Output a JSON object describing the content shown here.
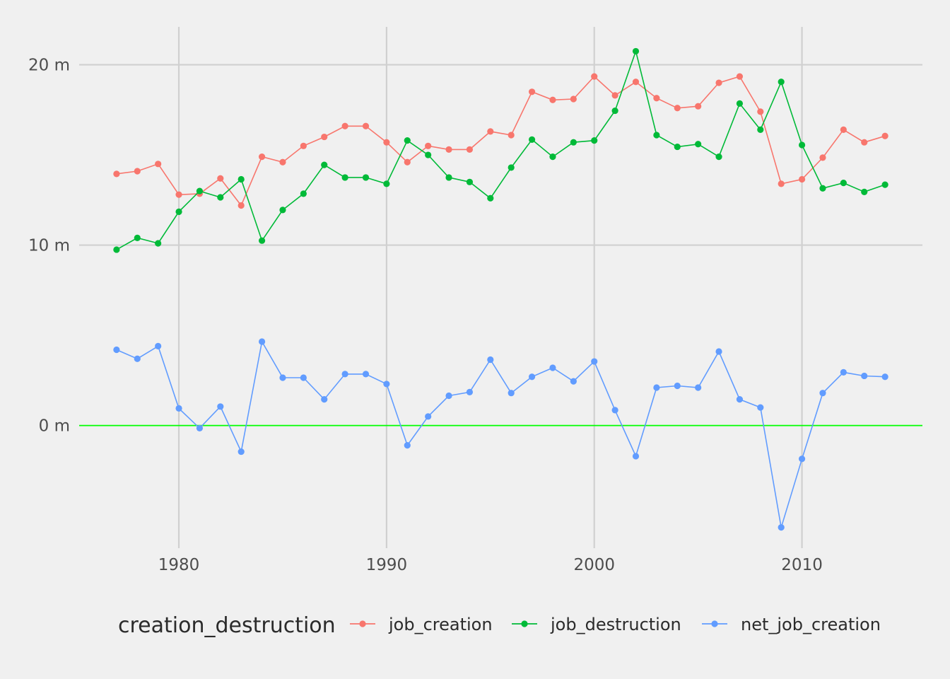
{
  "chart_data": {
    "type": "line",
    "x": [
      1977,
      1978,
      1979,
      1980,
      1981,
      1982,
      1983,
      1984,
      1985,
      1986,
      1987,
      1988,
      1989,
      1990,
      1991,
      1992,
      1993,
      1994,
      1995,
      1996,
      1997,
      1998,
      1999,
      2000,
      2001,
      2002,
      2003,
      2004,
      2005,
      2006,
      2007,
      2008,
      2009,
      2010,
      2011,
      2012,
      2013,
      2014
    ],
    "series": [
      {
        "name": "job_creation",
        "color": "#f8766d",
        "values": [
          13.95,
          14.1,
          14.5,
          12.8,
          12.85,
          13.7,
          12.2,
          14.9,
          14.6,
          15.5,
          16.0,
          16.6,
          16.6,
          15.7,
          14.6,
          15.5,
          15.3,
          15.3,
          16.3,
          16.1,
          18.5,
          18.05,
          18.1,
          19.35,
          18.3,
          19.05,
          18.15,
          17.6,
          17.7,
          19.0,
          19.35,
          17.4,
          13.4,
          13.65,
          14.85,
          16.4,
          15.7,
          16.05
        ]
      },
      {
        "name": "job_destruction",
        "color": "#00ba38",
        "values": [
          9.75,
          10.4,
          10.1,
          11.85,
          13.0,
          12.65,
          13.65,
          10.25,
          11.95,
          12.85,
          14.45,
          13.75,
          13.75,
          13.4,
          15.8,
          15.0,
          13.75,
          13.5,
          12.6,
          14.3,
          15.85,
          14.9,
          15.7,
          15.8,
          17.45,
          20.75,
          16.1,
          15.45,
          15.6,
          14.9,
          17.85,
          16.4,
          19.05,
          15.55,
          13.15,
          13.45,
          12.95,
          13.35
        ]
      },
      {
        "name": "net_job_creation",
        "color": "#619cff",
        "values": [
          4.2,
          3.7,
          4.4,
          0.95,
          -0.15,
          1.05,
          -1.45,
          4.65,
          2.65,
          2.65,
          1.45,
          2.85,
          2.85,
          2.3,
          -1.1,
          0.5,
          1.65,
          1.85,
          3.65,
          1.8,
          2.7,
          3.2,
          2.45,
          3.55,
          0.85,
          -1.7,
          2.1,
          2.2,
          2.1,
          4.1,
          1.45,
          1.0,
          -5.65,
          -1.85,
          1.8,
          2.95,
          2.75,
          2.7
        ]
      }
    ],
    "xticks": [
      1980,
      1990,
      2000,
      2010
    ],
    "xtick_labels": [
      "1980",
      "1990",
      "2000",
      "2010"
    ],
    "yticks": [
      0,
      10,
      20
    ],
    "ytick_labels": [
      "0 m",
      "10 m",
      "20 m"
    ],
    "xlim": [
      1975.2,
      2015.8
    ],
    "ylim": [
      -6.8,
      22.1
    ],
    "hline": {
      "value": 0,
      "color": "#00ff00"
    },
    "grid": true,
    "background": "#f0f0f0",
    "grid_color": "#d0d0d0",
    "legend": {
      "position": "bottom",
      "title": "creation_destruction",
      "items": [
        "job_creation",
        "job_destruction",
        "net_job_creation"
      ]
    }
  }
}
